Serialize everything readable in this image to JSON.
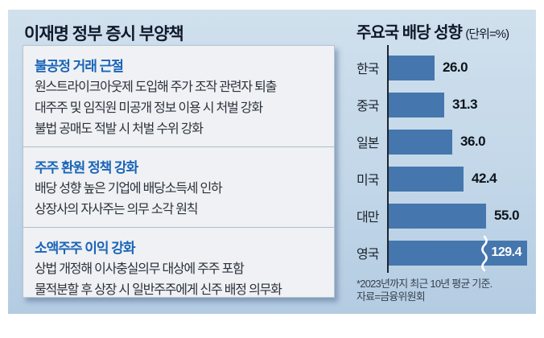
{
  "left_panel": {
    "title": "이재명 정부 증시 부양책",
    "sections": [
      {
        "heading": "불공정 거래 근절",
        "lines": [
          "원스트라이크아웃제 도입해 주가 조작 관련자 퇴출",
          "대주주 및 임직원 미공개 정보 이용 시 처벌 강화",
          "불법 공매도 적발 시 처벌 수위 강화"
        ]
      },
      {
        "heading": "주주 환원 정책 강화",
        "lines": [
          "배당 성향 높은 기업에 배당소득세 인하",
          "상장사의 자사주는 의무 소각 원칙"
        ]
      },
      {
        "heading": "소액주주 이익 강화",
        "lines": [
          "상법 개정해 이사충실의무 대상에 주주 포함",
          "물적분할 후 상장 시 일반주주에게 신주 배정 의무화"
        ]
      }
    ]
  },
  "right_panel": {
    "title": "주요국 배당 성향",
    "unit_label": "(단위=%)",
    "footnote_line1": "*2023년까지 최근 10년 평균 기준.",
    "footnote_line2": "자료=금융위원회"
  },
  "chart_data": {
    "type": "bar",
    "orientation": "horizontal",
    "title": "주요국 배당 성향",
    "unit": "%",
    "categories": [
      "한국",
      "중국",
      "일본",
      "미국",
      "대만",
      "영국"
    ],
    "values": [
      26.0,
      31.3,
      36.0,
      42.4,
      55.0,
      129.4
    ],
    "value_labels": [
      "26.0",
      "31.3",
      "36.0",
      "42.4",
      "55.0",
      "129.4"
    ],
    "broken_bar_categories": [
      "영국"
    ],
    "xlim": [
      0,
      80
    ],
    "grid": false,
    "legend": "none",
    "note": "*2023년까지 최근 10년 평균 기준.",
    "source": "자료=금융위원회"
  },
  "colors": {
    "bar": "#4577ae",
    "panel_background_top": "#d0e0ed",
    "panel_background_bottom": "#b4cce2",
    "section_heading": "#1a64b8",
    "title_text": "#10192a",
    "body_text": "#2b323b",
    "box_background": "#eff1f4",
    "axis": "#1d242c"
  }
}
